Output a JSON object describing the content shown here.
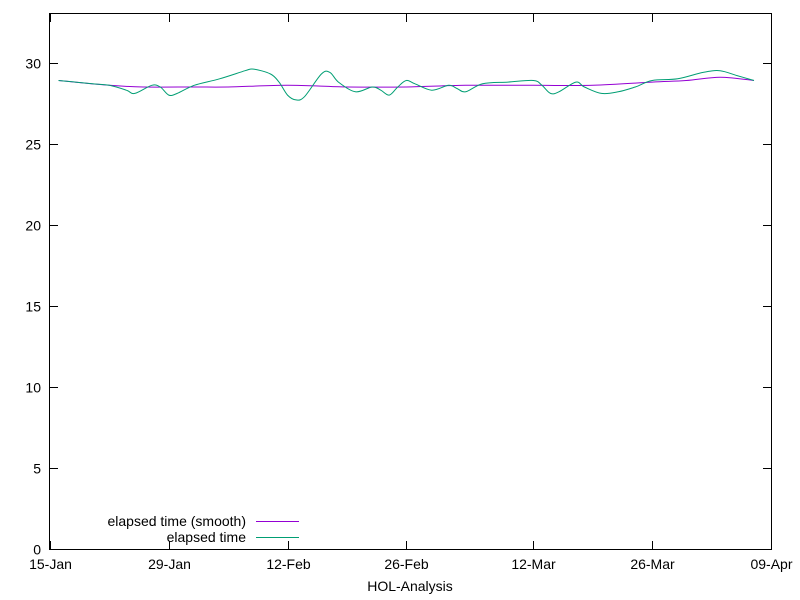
{
  "chart_data": {
    "type": "line",
    "title": "",
    "xlabel": "HOL-Analysis",
    "ylabel": "",
    "xlim": [
      "2024-01-15",
      "2024-04-09"
    ],
    "ylim": [
      0,
      33
    ],
    "x_ticks": [
      "15-Jan",
      "29-Jan",
      "12-Feb",
      "26-Feb",
      "12-Mar",
      "26-Mar",
      "09-Apr"
    ],
    "x_tick_dates": [
      "2024-01-15",
      "2024-01-29",
      "2024-02-12",
      "2024-02-26",
      "2024-03-12",
      "2024-03-26",
      "2024-04-09"
    ],
    "y_ticks": [
      0,
      5,
      10,
      15,
      20,
      25,
      30
    ],
    "grid": false,
    "legend_position": "bottom-left",
    "series": [
      {
        "name": "elapsed time (smooth)",
        "color": "#9400d3",
        "points": [
          [
            "2024-01-16",
            28.9
          ],
          [
            "2024-01-22",
            28.6
          ],
          [
            "2024-01-26",
            28.5
          ],
          [
            "2024-02-01",
            28.5
          ],
          [
            "2024-02-05",
            28.5
          ],
          [
            "2024-02-12",
            28.6
          ],
          [
            "2024-02-19",
            28.5
          ],
          [
            "2024-02-26",
            28.5
          ],
          [
            "2024-03-04",
            28.6
          ],
          [
            "2024-03-12",
            28.6
          ],
          [
            "2024-03-19",
            28.6
          ],
          [
            "2024-03-26",
            28.8
          ],
          [
            "2024-03-30",
            28.9
          ],
          [
            "2024-04-03",
            29.1
          ],
          [
            "2024-04-07",
            28.9
          ]
        ]
      },
      {
        "name": "elapsed time",
        "color": "#009e73",
        "points": [
          [
            "2024-01-16",
            28.9
          ],
          [
            "2024-01-18",
            28.8
          ],
          [
            "2024-01-20",
            28.7
          ],
          [
            "2024-01-22",
            28.6
          ],
          [
            "2024-01-24",
            28.3
          ],
          [
            "2024-01-25",
            28.1
          ],
          [
            "2024-01-27",
            28.6
          ],
          [
            "2024-01-28",
            28.5
          ],
          [
            "2024-01-29",
            28.0
          ],
          [
            "2024-01-30",
            28.1
          ],
          [
            "2024-02-01",
            28.6
          ],
          [
            "2024-02-04",
            29.0
          ],
          [
            "2024-02-07",
            29.5
          ],
          [
            "2024-02-08",
            29.6
          ],
          [
            "2024-02-10",
            29.3
          ],
          [
            "2024-02-11",
            28.8
          ],
          [
            "2024-02-12",
            28.0
          ],
          [
            "2024-02-13",
            27.7
          ],
          [
            "2024-02-14",
            27.9
          ],
          [
            "2024-02-16",
            29.3
          ],
          [
            "2024-02-17",
            29.4
          ],
          [
            "2024-02-18",
            28.8
          ],
          [
            "2024-02-20",
            28.2
          ],
          [
            "2024-02-22",
            28.5
          ],
          [
            "2024-02-23",
            28.3
          ],
          [
            "2024-02-24",
            28.0
          ],
          [
            "2024-02-25",
            28.5
          ],
          [
            "2024-02-26",
            28.9
          ],
          [
            "2024-02-27",
            28.7
          ],
          [
            "2024-02-29",
            28.3
          ],
          [
            "2024-03-02",
            28.6
          ],
          [
            "2024-03-03",
            28.4
          ],
          [
            "2024-03-04",
            28.2
          ],
          [
            "2024-03-06",
            28.7
          ],
          [
            "2024-03-09",
            28.8
          ],
          [
            "2024-03-12",
            28.9
          ],
          [
            "2024-03-13",
            28.6
          ],
          [
            "2024-03-14",
            28.1
          ],
          [
            "2024-03-15",
            28.2
          ],
          [
            "2024-03-17",
            28.8
          ],
          [
            "2024-03-18",
            28.5
          ],
          [
            "2024-03-20",
            28.1
          ],
          [
            "2024-03-22",
            28.2
          ],
          [
            "2024-03-24",
            28.5
          ],
          [
            "2024-03-26",
            28.9
          ],
          [
            "2024-03-29",
            29.0
          ],
          [
            "2024-04-01",
            29.4
          ],
          [
            "2024-04-03",
            29.5
          ],
          [
            "2024-04-05",
            29.2
          ],
          [
            "2024-04-07",
            28.9
          ]
        ]
      }
    ]
  }
}
